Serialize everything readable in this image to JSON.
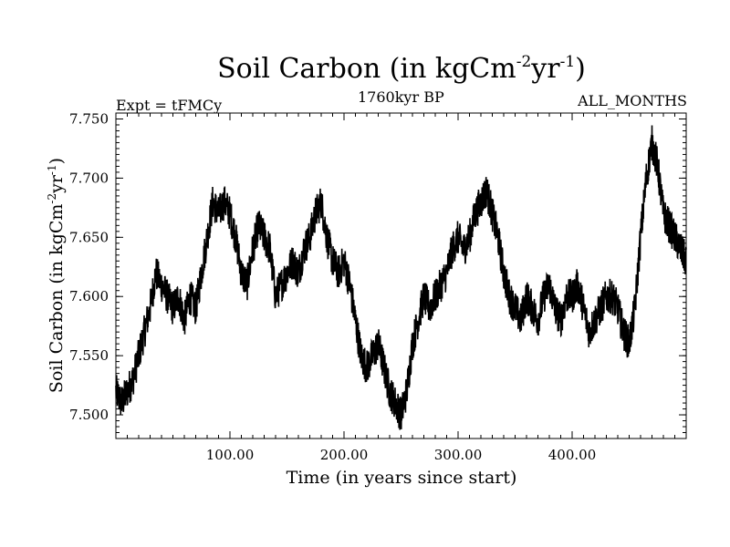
{
  "header": {
    "title_main": "Soil Carbon (in kgCm",
    "title_sup1": "-2",
    "title_mid": "yr",
    "title_sup2": "-1",
    "title_end": ")",
    "left_label": "Expt = tFMCy",
    "center_label": "1760kyr BP",
    "right_label": "ALL_MONTHS"
  },
  "chart_data": {
    "type": "line",
    "title": "Soil Carbon (in kgCm-2yr-1)",
    "xlabel": "Time (in years since start)",
    "ylabel": "Soil Carbon (in kgCm-2yr-1)",
    "ylabel_main": "Soil Carbon (in kgCm",
    "ylabel_sup1": "-2",
    "ylabel_mid": "yr",
    "ylabel_sup2": "-1",
    "ylabel_end": ")",
    "xlim": [
      0,
      500
    ],
    "ylim": [
      7.48,
      7.755
    ],
    "xticks": [
      100,
      200,
      300,
      400
    ],
    "xtick_labels": [
      "100.00",
      "200.00",
      "300.00",
      "400.00"
    ],
    "yticks": [
      7.5,
      7.55,
      7.6,
      7.65,
      7.7,
      7.75
    ],
    "ytick_labels": [
      "7.500",
      "7.550",
      "7.600",
      "7.650",
      "7.700",
      "7.750"
    ],
    "grid": false,
    "line_color": "#000000",
    "series": [
      {
        "x": [
          0,
          5,
          10,
          15,
          20,
          25,
          30,
          35,
          40,
          45,
          50,
          55,
          60,
          65,
          70,
          75,
          80,
          85,
          90,
          95,
          100,
          105,
          110,
          115,
          120,
          125,
          130,
          135,
          140,
          145,
          150,
          155,
          160,
          165,
          170,
          175,
          180,
          185,
          190,
          195,
          200,
          205,
          210,
          215,
          220,
          225,
          230,
          235,
          240,
          245,
          250,
          255,
          260,
          265,
          270,
          275,
          280,
          285,
          290,
          295,
          300,
          305,
          310,
          315,
          320,
          325,
          330,
          335,
          340,
          345,
          350,
          355,
          360,
          365,
          370,
          375,
          380,
          385,
          390,
          395,
          400,
          405,
          410,
          415,
          420,
          425,
          430,
          435,
          440,
          445,
          450,
          455,
          460,
          465,
          470,
          475,
          480,
          485,
          490,
          495,
          500
        ],
        "y": [
          7.52,
          7.51,
          7.52,
          7.53,
          7.55,
          7.57,
          7.59,
          7.62,
          7.61,
          7.6,
          7.59,
          7.6,
          7.58,
          7.6,
          7.59,
          7.62,
          7.65,
          7.68,
          7.67,
          7.68,
          7.67,
          7.65,
          7.62,
          7.61,
          7.64,
          7.66,
          7.65,
          7.64,
          7.6,
          7.61,
          7.62,
          7.63,
          7.62,
          7.64,
          7.65,
          7.67,
          7.68,
          7.65,
          7.63,
          7.62,
          7.63,
          7.61,
          7.58,
          7.55,
          7.54,
          7.55,
          7.56,
          7.54,
          7.52,
          7.51,
          7.5,
          7.52,
          7.56,
          7.58,
          7.6,
          7.59,
          7.6,
          7.61,
          7.62,
          7.64,
          7.65,
          7.64,
          7.65,
          7.67,
          7.68,
          7.69,
          7.67,
          7.65,
          7.62,
          7.6,
          7.59,
          7.58,
          7.6,
          7.59,
          7.58,
          7.6,
          7.61,
          7.59,
          7.58,
          7.6,
          7.6,
          7.61,
          7.59,
          7.57,
          7.58,
          7.59,
          7.6,
          7.6,
          7.59,
          7.57,
          7.56,
          7.59,
          7.65,
          7.7,
          7.73,
          7.71,
          7.67,
          7.66,
          7.65,
          7.64,
          7.63
        ]
      }
    ]
  }
}
